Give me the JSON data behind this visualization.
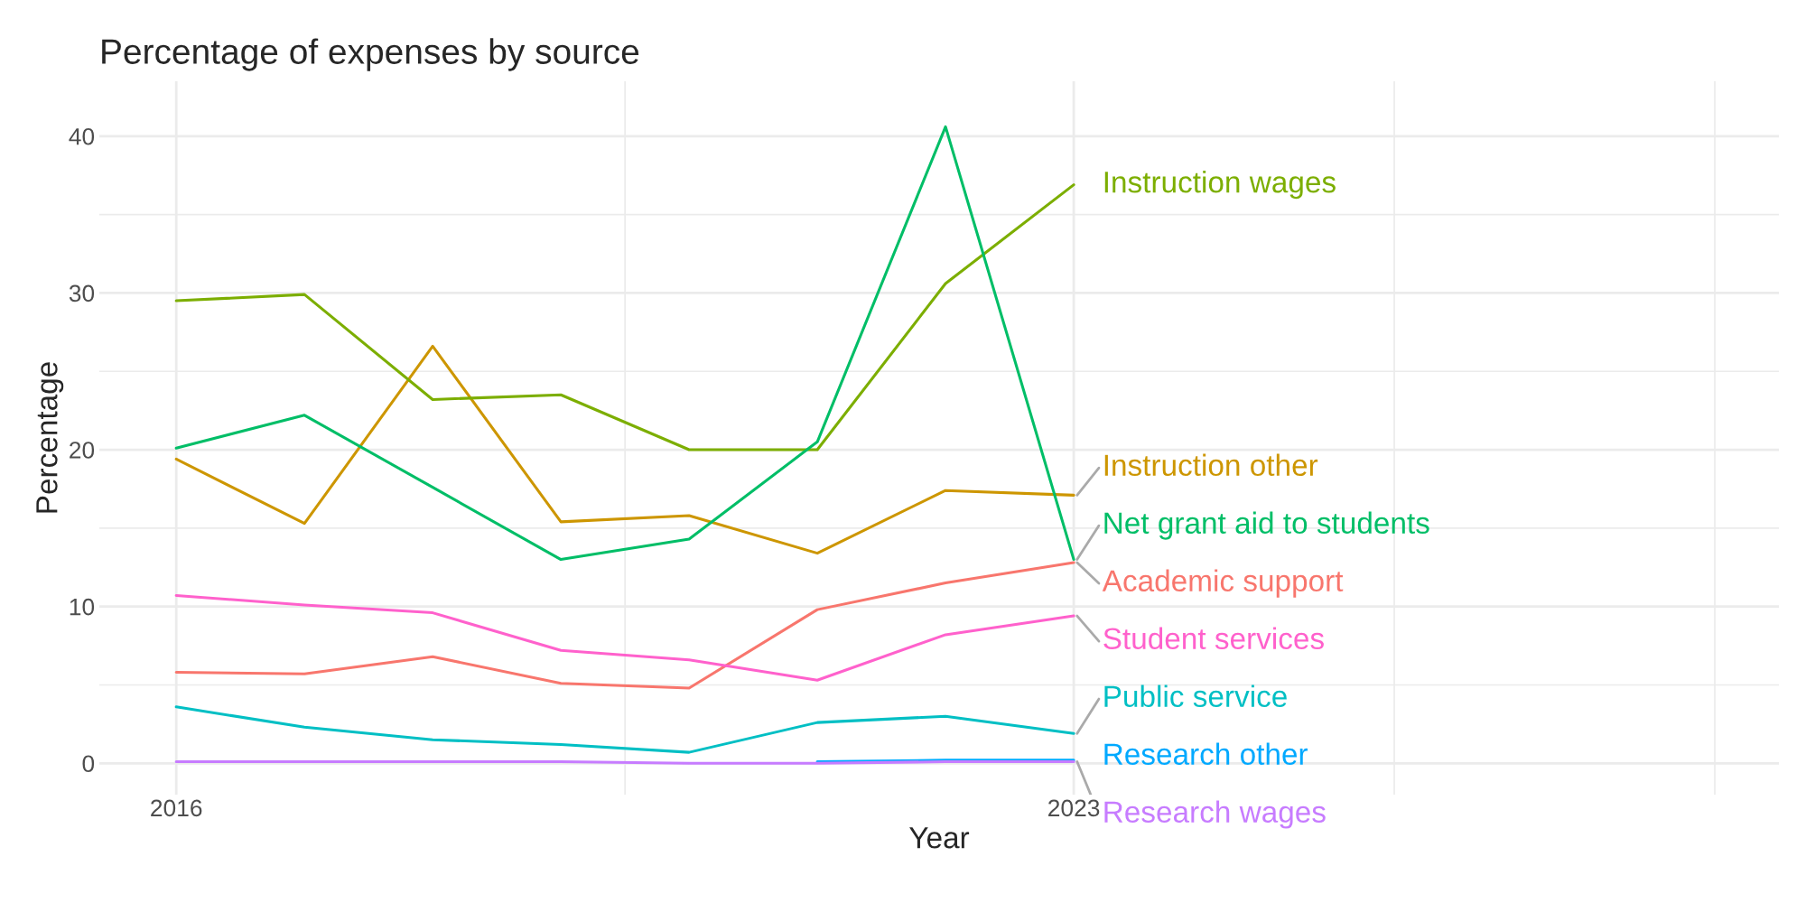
{
  "chart_data": {
    "type": "line",
    "title": "Percentage of expenses by source",
    "xlabel": "Year",
    "ylabel": "Percentage",
    "x": [
      2016,
      2017,
      2018,
      2019,
      2020,
      2021,
      2022,
      2023
    ],
    "xlim": [
      2015.4,
      2028.5
    ],
    "xticks": [
      2016,
      {
        "value": 2019.5,
        "label": null
      },
      2023,
      {
        "value": 2025.5,
        "label": null
      },
      {
        "value": 2028,
        "label": null
      }
    ],
    "ylim": [
      -2,
      43.5
    ],
    "yticks": [
      0,
      {
        "value": 5,
        "label": null
      },
      10,
      {
        "value": 15,
        "label": null
      },
      20,
      {
        "value": 25,
        "label": null
      },
      30,
      {
        "value": 35,
        "label": null
      },
      40
    ],
    "grid": true,
    "series": [
      {
        "name": "Academic support",
        "color": "#f8766d",
        "values": [
          5.8,
          5.7,
          6.8,
          5.1,
          4.8,
          9.8,
          11.5,
          12.8
        ]
      },
      {
        "name": "Instruction other",
        "color": "#cd9600",
        "values": [
          19.4,
          15.3,
          26.6,
          15.4,
          15.8,
          13.4,
          17.4,
          17.1
        ]
      },
      {
        "name": "Instruction wages",
        "color": "#7cae00",
        "values": [
          29.5,
          29.9,
          23.2,
          23.5,
          20.0,
          20.0,
          30.6,
          36.9
        ]
      },
      {
        "name": "Net grant aid to students",
        "color": "#00be67",
        "values": [
          20.1,
          22.2,
          17.6,
          13.0,
          14.3,
          20.5,
          40.6,
          13.0
        ]
      },
      {
        "name": "Public service",
        "color": "#00bfc4",
        "values": [
          3.6,
          2.3,
          1.5,
          1.2,
          0.7,
          2.6,
          3.0,
          1.9
        ]
      },
      {
        "name": "Research other",
        "color": "#00a9ff",
        "values": [
          null,
          null,
          null,
          null,
          null,
          0.1,
          0.2,
          0.2
        ]
      },
      {
        "name": "Research wages",
        "color": "#c77cff",
        "values": [
          0.1,
          0.1,
          0.1,
          0.1,
          0.0,
          0.0,
          0.1,
          0.1
        ]
      },
      {
        "name": "Student services",
        "color": "#ff61cc",
        "values": [
          10.7,
          10.1,
          9.6,
          7.2,
          6.6,
          5.3,
          8.2,
          9.4
        ]
      }
    ]
  }
}
